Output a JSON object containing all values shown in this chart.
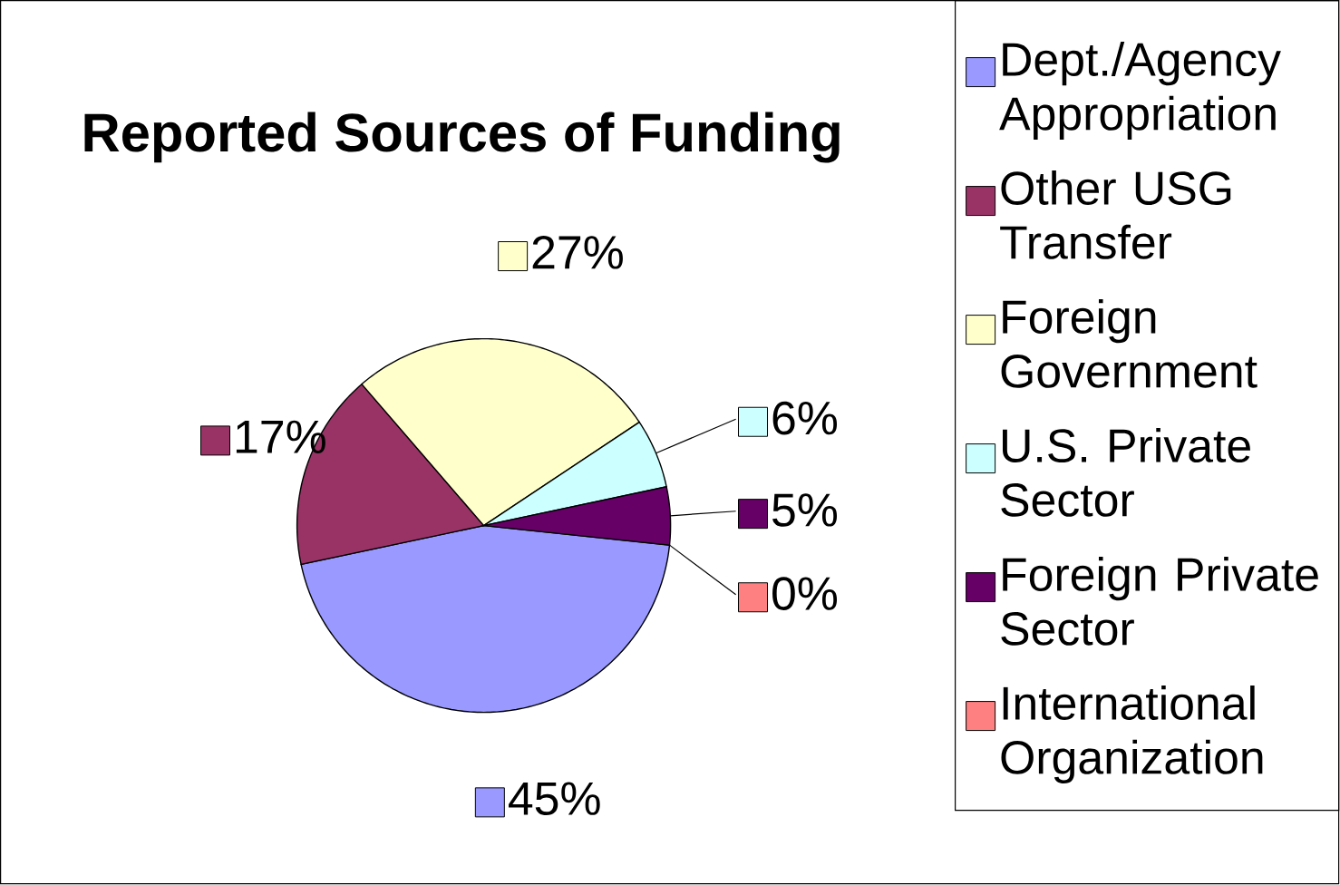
{
  "chart_data": {
    "type": "pie",
    "title": "Reported Sources of Funding",
    "categories": [
      "Dept./Agency Appropriation",
      "Other USG Transfer",
      "Foreign Government",
      "U.S. Private Sector",
      "Foreign Private Sector",
      "International Organization"
    ],
    "values": [
      45,
      17,
      27,
      6,
      5,
      0
    ],
    "value_labels": [
      "45%",
      "17%",
      "27%",
      "6%",
      "5%",
      "0%"
    ],
    "colors": [
      "#9999ff",
      "#993366",
      "#ffffcc",
      "#ccffff",
      "#660066",
      "#ff8080"
    ],
    "legend": "right"
  }
}
